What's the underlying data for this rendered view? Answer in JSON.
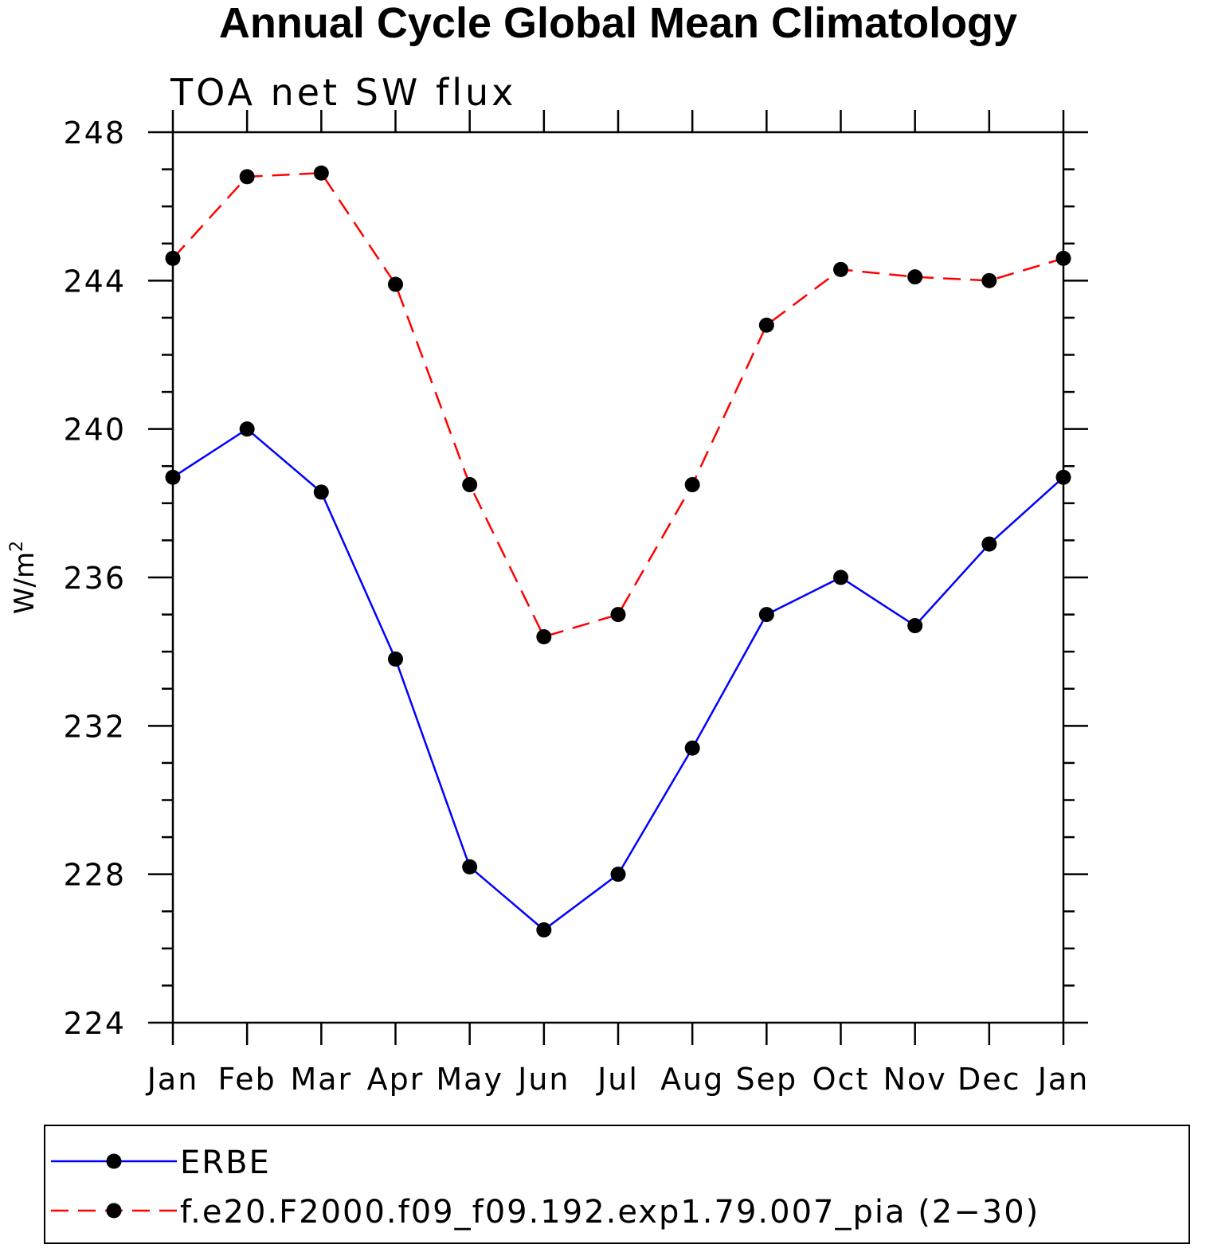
{
  "chart_data": {
    "type": "line",
    "title": "Annual Cycle Global Mean Climatology",
    "subtitle": "TOA net SW flux",
    "ylabel": "W/m",
    "ylabel_superscript": "2",
    "xlabel": "",
    "categories": [
      "Jan",
      "Feb",
      "Mar",
      "Apr",
      "May",
      "Jun",
      "Jul",
      "Aug",
      "Sep",
      "Oct",
      "Nov",
      "Dec",
      "Jan"
    ],
    "ylim": [
      224,
      248
    ],
    "yticks": [
      "224",
      "228",
      "232",
      "236",
      "240",
      "244",
      "248"
    ],
    "grid": false,
    "legend_position": "bottom",
    "series": [
      {
        "name": "ERBE",
        "color": "#0000ff",
        "line_style": "solid",
        "marker": "filled-circle",
        "values": [
          238.7,
          240.0,
          238.3,
          233.8,
          228.2,
          226.5,
          228.0,
          231.4,
          235.0,
          236.0,
          234.7,
          236.9,
          238.7
        ]
      },
      {
        "name": "f.e20.F2000.f09_f09.192.exp1.79.007_pia (2−30)",
        "color": "#ff0000",
        "line_style": "dashed",
        "marker": "filled-circle",
        "values": [
          244.6,
          246.8,
          246.9,
          243.9,
          238.5,
          234.4,
          235.0,
          238.5,
          242.8,
          244.3,
          244.1,
          244.0,
          244.6
        ]
      }
    ]
  }
}
